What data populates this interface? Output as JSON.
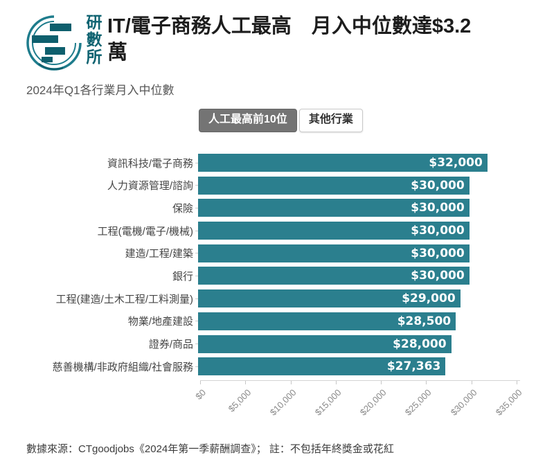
{
  "header": {
    "logo_text": "研數所",
    "title_lines": [
      "IT/電子商務人工最高　月入中位數達$3.2",
      "萬"
    ],
    "title_full": "IT/電子商務人工最高　月入中位數達$3.2萬"
  },
  "subtitle": "2024年Q1各行業月入中位數",
  "tabs": {
    "selected_label": "人工最高前10位",
    "unselected_label": "其他行業"
  },
  "chart_data": {
    "type": "bar",
    "orientation": "horizontal",
    "title": "2024年Q1各行業月入中位數",
    "categories": [
      "資訊科技/電子商務",
      "人力資源管理/諮詢",
      "保險",
      "工程(電機/電子/機械)",
      "建造/工程/建築",
      "銀行",
      "工程(建造/土木工程/工料測量)",
      "物業/地產建設",
      "證券/商品",
      "慈善機構/非政府組織/社會服務"
    ],
    "values": [
      32000,
      30000,
      30000,
      30000,
      30000,
      30000,
      29000,
      28500,
      28000,
      27363
    ],
    "value_labels": [
      "$32,000",
      "$30,000",
      "$30,000",
      "$30,000",
      "$30,000",
      "$30,000",
      "$29,000",
      "$28,500",
      "$28,000",
      "$27,363"
    ],
    "xlim": [
      0,
      35000
    ],
    "x_ticks": [
      0,
      5000,
      10000,
      15000,
      20000,
      25000,
      30000,
      35000
    ],
    "x_tick_labels": [
      "$0",
      "$5,000",
      "$10,000",
      "$15,000",
      "$20,000",
      "$25,000",
      "$30,000",
      "$35,000"
    ],
    "grid": false,
    "legend": null,
    "bar_color": "#2b7f8e",
    "value_label_color": "#ffffff"
  },
  "footer": "數據來源：CTgoodjobs《2024年第一季薪酬調查》； 註：不包括年終獎金或花紅",
  "colors": {
    "accent_teal": "#2b7f8e",
    "logo_teal": "#1e7c8c",
    "logo_dark_teal": "#0e5f6d",
    "tab_selected_bg": "#747474",
    "title_text": "#1d1d1d",
    "subtitle_text": "#565656",
    "axis_text": "#8a8a8a"
  }
}
